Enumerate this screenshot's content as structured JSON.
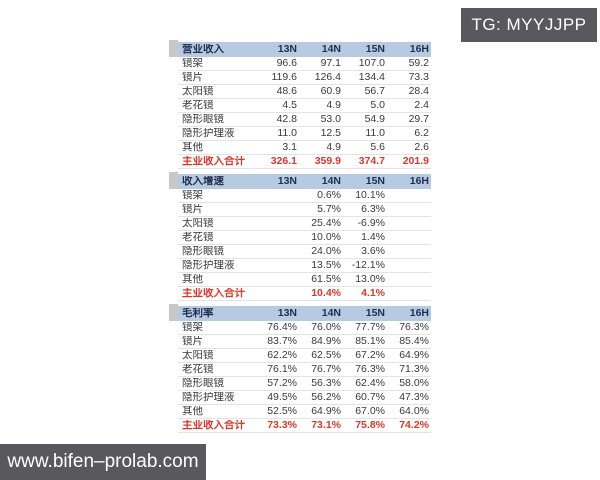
{
  "watermarks": {
    "top": "TG: MYYJJPP",
    "bottom": "www.bifen–prolab.com"
  },
  "colors": {
    "header_bg": "#b6cae2",
    "header_text": "#1e2f50",
    "total_red": "#e0352b",
    "wm_bg": "#59595b",
    "row_border": "#e4e4e4",
    "body_text": "#3a3a3a"
  },
  "chart_data": {
    "type": "table",
    "columns": [
      "13N",
      "14N",
      "15N",
      "16H"
    ],
    "sections": [
      {
        "title": "营业收入",
        "rows": [
          {
            "label": "镜架",
            "values": [
              "96.6",
              "97.1",
              "107.0",
              "59.2"
            ]
          },
          {
            "label": "镜片",
            "values": [
              "119.6",
              "126.4",
              "134.4",
              "73.3"
            ]
          },
          {
            "label": "太阳镜",
            "values": [
              "48.6",
              "60.9",
              "56.7",
              "28.4"
            ]
          },
          {
            "label": "老花镜",
            "values": [
              "4.5",
              "4.9",
              "5.0",
              "2.4"
            ]
          },
          {
            "label": "隐形眼镜",
            "values": [
              "42.8",
              "53.0",
              "54.9",
              "29.7"
            ]
          },
          {
            "label": "隐形护理液",
            "values": [
              "11.0",
              "12.5",
              "11.0",
              "6.2"
            ]
          },
          {
            "label": "其他",
            "values": [
              "3.1",
              "4.9",
              "5.6",
              "2.6"
            ]
          },
          {
            "label": "主业收入合计",
            "values": [
              "326.1",
              "359.9",
              "374.7",
              "201.9"
            ],
            "total": true
          }
        ]
      },
      {
        "title": "收入增速",
        "rows": [
          {
            "label": "镜架",
            "values": [
              "",
              "0.6%",
              "10.1%",
              ""
            ]
          },
          {
            "label": "镜片",
            "values": [
              "",
              "5.7%",
              "6.3%",
              ""
            ]
          },
          {
            "label": "太阳镜",
            "values": [
              "",
              "25.4%",
              "-6.9%",
              ""
            ]
          },
          {
            "label": "老花镜",
            "values": [
              "",
              "10.0%",
              "1.4%",
              ""
            ]
          },
          {
            "label": "隐形眼镜",
            "values": [
              "",
              "24.0%",
              "3.6%",
              ""
            ]
          },
          {
            "label": "隐形护理液",
            "values": [
              "",
              "13.5%",
              "-12.1%",
              ""
            ]
          },
          {
            "label": "其他",
            "values": [
              "",
              "61.5%",
              "13.0%",
              ""
            ]
          },
          {
            "label": "主业收入合计",
            "values": [
              "",
              "10.4%",
              "4.1%",
              ""
            ],
            "total": true
          }
        ]
      },
      {
        "title": "毛利率",
        "rows": [
          {
            "label": "镜架",
            "values": [
              "76.4%",
              "76.0%",
              "77.7%",
              "76.3%"
            ]
          },
          {
            "label": "镜片",
            "values": [
              "83.7%",
              "84.9%",
              "85.1%",
              "85.4%"
            ]
          },
          {
            "label": "太阳镜",
            "values": [
              "62.2%",
              "62.5%",
              "67.2%",
              "64.9%"
            ]
          },
          {
            "label": "老花镜",
            "values": [
              "76.1%",
              "76.7%",
              "76.3%",
              "71.3%"
            ]
          },
          {
            "label": "隐形眼镜",
            "values": [
              "57.2%",
              "56.3%",
              "62.4%",
              "58.0%"
            ]
          },
          {
            "label": "隐形护理液",
            "values": [
              "49.5%",
              "56.2%",
              "60.7%",
              "47.3%"
            ]
          },
          {
            "label": "其他",
            "values": [
              "52.5%",
              "64.9%",
              "67.0%",
              "64.0%"
            ]
          },
          {
            "label": "主业收入合计",
            "values": [
              "73.3%",
              "73.1%",
              "75.8%",
              "74.2%"
            ],
            "total": true
          }
        ]
      }
    ]
  }
}
